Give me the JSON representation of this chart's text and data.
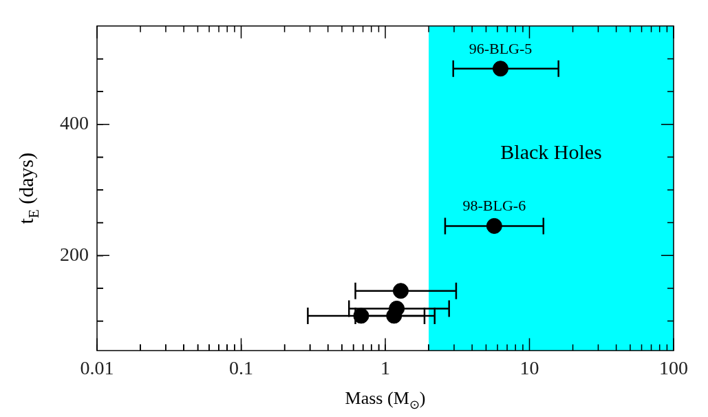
{
  "chart_data": {
    "type": "scatter",
    "xlabel": "Mass (M$_{⊙}$)",
    "ylabel": "t$_{E}$ (days)",
    "log": "x",
    "marker": "circle",
    "grid": false,
    "legend": false,
    "series": [
      {
        "color": "#000000",
        "x": [
          6.3,
          5.7,
          1.28,
          1.2,
          0.68,
          1.15
        ],
        "values": [
          485,
          245,
          146,
          119,
          108,
          108
        ],
        "xerrors": [
          [
            2.96,
            15.9
          ],
          [
            2.6,
            12.5
          ],
          [
            0.62,
            3.1
          ],
          [
            0.56,
            2.77
          ],
          [
            0.29,
            1.87
          ],
          [
            0.62,
            2.2
          ]
        ]
      }
    ],
    "xlim": [
      0.01,
      100
    ],
    "xticks": [
      0.01,
      {
        "value": 0.02,
        "label": null
      },
      {
        "value": 0.03,
        "label": null
      },
      {
        "value": 0.04,
        "label": null
      },
      {
        "value": 0.05,
        "label": null
      },
      {
        "value": 0.06,
        "label": null
      },
      {
        "value": 0.07,
        "label": null
      },
      {
        "value": 0.08,
        "label": null
      },
      {
        "value": 0.09,
        "label": null
      },
      0.1,
      {
        "value": 0.2,
        "label": null
      },
      {
        "value": 0.3,
        "label": null
      },
      {
        "value": 0.4,
        "label": null
      },
      {
        "value": 0.5,
        "label": null
      },
      {
        "value": 0.6,
        "label": null
      },
      {
        "value": 0.7,
        "label": null
      },
      {
        "value": 0.8,
        "label": null
      },
      {
        "value": 0.9,
        "label": null
      },
      1,
      {
        "value": 2,
        "label": null
      },
      {
        "value": 3,
        "label": null
      },
      {
        "value": 4,
        "label": null
      },
      {
        "value": 5,
        "label": null
      },
      {
        "value": 6,
        "label": null
      },
      {
        "value": 7,
        "label": null
      },
      {
        "value": 8,
        "label": null
      },
      {
        "value": 9,
        "label": null
      },
      10,
      {
        "value": 20,
        "label": null
      },
      {
        "value": 30,
        "label": null
      },
      {
        "value": 40,
        "label": null
      },
      {
        "value": 50,
        "label": null
      },
      {
        "value": 60,
        "label": null
      },
      {
        "value": 70,
        "label": null
      },
      {
        "value": 80,
        "label": null
      },
      {
        "value": 90,
        "label": null
      },
      100
    ],
    "ylim": [
      55,
      550
    ],
    "yticks": [
      {
        "value": 100,
        "label": null
      },
      {
        "value": 150,
        "label": null
      },
      200,
      {
        "value": 250,
        "label": null
      },
      {
        "value": 300,
        "label": null
      },
      {
        "value": 350,
        "label": null
      },
      400,
      {
        "value": 450,
        "label": null
      },
      {
        "value": 500,
        "label": null
      }
    ],
    "bands": [
      {
        "axis": "x",
        "from": 2,
        "to": 100,
        "label": "Black Holes",
        "color": "#00ffff"
      }
    ],
    "annotations": [
      {
        "text": "96-BLG-5",
        "x": 6.3,
        "y": 485
      },
      {
        "text": "98-BLG-6",
        "x": 5.7,
        "y": 245
      }
    ]
  }
}
